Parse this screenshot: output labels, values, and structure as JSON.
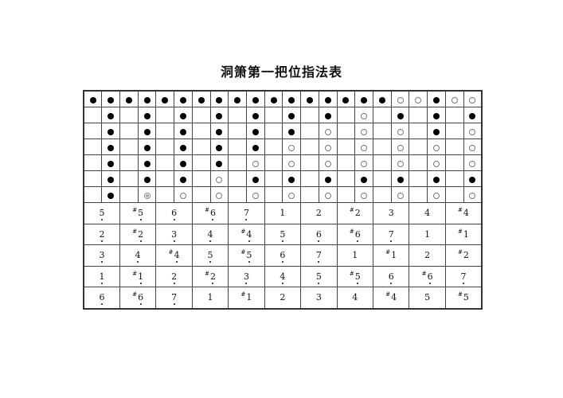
{
  "title": "洞箫第一把位指法表",
  "fingering_legend": {
    "F": "closed hole (filled)",
    "O": "open hole",
    "H": "half hole (double circle)"
  },
  "fingering_rows": [
    [
      "F",
      "F",
      "F",
      "F",
      "F",
      "F",
      "F",
      "F",
      "F",
      "F",
      "F",
      "F",
      "F",
      "F",
      "F",
      "F",
      "F",
      "O",
      "O",
      "F",
      "O",
      "O"
    ],
    [
      "",
      "F",
      "",
      "F",
      "",
      "F",
      "",
      "F",
      "",
      "F",
      "",
      "F",
      "",
      "F",
      "",
      "O",
      "",
      "F",
      "",
      "F",
      "",
      "F"
    ],
    [
      "",
      "F",
      "",
      "F",
      "",
      "F",
      "",
      "F",
      "",
      "F",
      "",
      "F",
      "",
      "O",
      "",
      "O",
      "",
      "O",
      "",
      "F",
      "",
      "O"
    ],
    [
      "",
      "F",
      "",
      "F",
      "",
      "F",
      "",
      "F",
      "",
      "F",
      "",
      "O",
      "",
      "O",
      "",
      "O",
      "",
      "O",
      "",
      "O",
      "",
      "O"
    ],
    [
      "",
      "F",
      "",
      "F",
      "",
      "F",
      "",
      "F",
      "",
      "O",
      "",
      "O",
      "",
      "O",
      "",
      "O",
      "",
      "O",
      "",
      "O",
      "",
      "O"
    ],
    [
      "",
      "F",
      "",
      "F",
      "",
      "F",
      "",
      "O",
      "",
      "F",
      "",
      "F",
      "",
      "F",
      "",
      "F",
      "",
      "F",
      "",
      "F",
      "",
      "F"
    ],
    [
      "",
      "F",
      "",
      "H",
      "",
      "O",
      "",
      "O",
      "",
      "O",
      "",
      "O",
      "",
      "O",
      "",
      "O",
      "",
      "O",
      "",
      "O",
      "",
      "O"
    ]
  ],
  "note_rows": [
    [
      {
        "n": "5",
        "sharp": false,
        "low": true
      },
      {
        "n": "5",
        "sharp": true,
        "low": true
      },
      {
        "n": "6",
        "sharp": false,
        "low": true
      },
      {
        "n": "6",
        "sharp": true,
        "low": true
      },
      {
        "n": "7",
        "sharp": false,
        "low": true
      },
      {
        "n": "1",
        "sharp": false,
        "low": false
      },
      {
        "n": "2",
        "sharp": false,
        "low": false
      },
      {
        "n": "2",
        "sharp": true,
        "low": false
      },
      {
        "n": "3",
        "sharp": false,
        "low": false
      },
      {
        "n": "4",
        "sharp": false,
        "low": false
      },
      {
        "n": "4",
        "sharp": true,
        "low": false
      }
    ],
    [
      {
        "n": "2",
        "sharp": false,
        "low": true
      },
      {
        "n": "2",
        "sharp": true,
        "low": true
      },
      {
        "n": "3",
        "sharp": false,
        "low": true
      },
      {
        "n": "4",
        "sharp": false,
        "low": true
      },
      {
        "n": "4",
        "sharp": true,
        "low": true
      },
      {
        "n": "5",
        "sharp": false,
        "low": true
      },
      {
        "n": "6",
        "sharp": false,
        "low": true
      },
      {
        "n": "6",
        "sharp": true,
        "low": true
      },
      {
        "n": "7",
        "sharp": false,
        "low": true
      },
      {
        "n": "1",
        "sharp": false,
        "low": false
      },
      {
        "n": "1",
        "sharp": true,
        "low": false
      }
    ],
    [
      {
        "n": "3",
        "sharp": false,
        "low": true
      },
      {
        "n": "4",
        "sharp": false,
        "low": true
      },
      {
        "n": "4",
        "sharp": true,
        "low": true
      },
      {
        "n": "5",
        "sharp": false,
        "low": true
      },
      {
        "n": "5",
        "sharp": true,
        "low": true
      },
      {
        "n": "6",
        "sharp": false,
        "low": true
      },
      {
        "n": "7",
        "sharp": false,
        "low": true
      },
      {
        "n": "1",
        "sharp": false,
        "low": false
      },
      {
        "n": "1",
        "sharp": true,
        "low": false
      },
      {
        "n": "2",
        "sharp": false,
        "low": false
      },
      {
        "n": "2",
        "sharp": true,
        "low": false
      }
    ],
    [
      {
        "n": "1",
        "sharp": false,
        "low": true
      },
      {
        "n": "1",
        "sharp": true,
        "low": true
      },
      {
        "n": "2",
        "sharp": false,
        "low": true
      },
      {
        "n": "2",
        "sharp": true,
        "low": true
      },
      {
        "n": "3",
        "sharp": false,
        "low": true
      },
      {
        "n": "4",
        "sharp": false,
        "low": true
      },
      {
        "n": "5",
        "sharp": false,
        "low": true
      },
      {
        "n": "5",
        "sharp": true,
        "low": true
      },
      {
        "n": "6",
        "sharp": false,
        "low": true
      },
      {
        "n": "6",
        "sharp": true,
        "low": true
      },
      {
        "n": "7",
        "sharp": false,
        "low": true
      }
    ],
    [
      {
        "n": "6",
        "sharp": false,
        "low": true
      },
      {
        "n": "6",
        "sharp": true,
        "low": true
      },
      {
        "n": "7",
        "sharp": false,
        "low": true
      },
      {
        "n": "1",
        "sharp": false,
        "low": false
      },
      {
        "n": "1",
        "sharp": true,
        "low": false
      },
      {
        "n": "2",
        "sharp": false,
        "low": false
      },
      {
        "n": "3",
        "sharp": false,
        "low": false
      },
      {
        "n": "4",
        "sharp": false,
        "low": false
      },
      {
        "n": "4",
        "sharp": true,
        "low": false
      },
      {
        "n": "5",
        "sharp": false,
        "low": false
      },
      {
        "n": "5",
        "sharp": true,
        "low": false
      }
    ]
  ],
  "sharp_symbol": "#"
}
